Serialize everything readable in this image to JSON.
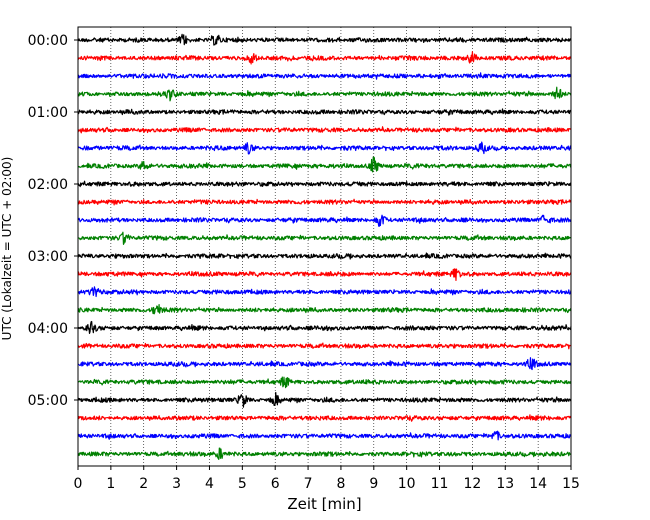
{
  "chart_data": {
    "type": "line",
    "title": "",
    "xlabel": "Zeit  [min]",
    "ylabel": "UTC (Lokalzeit = UTC + 02:00)",
    "xlim": [
      0,
      15
    ],
    "x_ticks": [
      0,
      1,
      2,
      3,
      4,
      5,
      6,
      7,
      8,
      9,
      10,
      11,
      12,
      13,
      14,
      15
    ],
    "x_tick_labels": [
      "0",
      "1",
      "2",
      "3",
      "4",
      "5",
      "6",
      "7",
      "8",
      "9",
      "10",
      "11",
      "12",
      "13",
      "14",
      "15"
    ],
    "y_tick_labels": [
      "00:00",
      "01:00",
      "02:00",
      "03:00",
      "04:00",
      "05:00"
    ],
    "trace_interval_min": 15,
    "trace_count": 24,
    "trace_colors": [
      "#000000",
      "#ff0000",
      "#0000ff",
      "#008000"
    ],
    "vertical_grid": "dotted",
    "legend": "none",
    "events": [
      {
        "trace": 0,
        "minute": 3.2,
        "amp": 1.4
      },
      {
        "trace": 0,
        "minute": 4.2,
        "amp": 1.5
      },
      {
        "trace": 1,
        "minute": 5.3,
        "amp": 1.6
      },
      {
        "trace": 1,
        "minute": 12.0,
        "amp": 1.7
      },
      {
        "trace": 3,
        "minute": 2.8,
        "amp": 1.5
      },
      {
        "trace": 3,
        "minute": 14.6,
        "amp": 1.8
      },
      {
        "trace": 6,
        "minute": 5.2,
        "amp": 1.5
      },
      {
        "trace": 6,
        "minute": 12.3,
        "amp": 1.4
      },
      {
        "trace": 7,
        "minute": 9.0,
        "amp": 2.4
      },
      {
        "trace": 7,
        "minute": 2.0,
        "amp": 1.3
      },
      {
        "trace": 10,
        "minute": 9.2,
        "amp": 1.8
      },
      {
        "trace": 10,
        "minute": 14.2,
        "amp": 1.4
      },
      {
        "trace": 11,
        "minute": 1.4,
        "amp": 1.5
      },
      {
        "trace": 13,
        "minute": 11.5,
        "amp": 1.5
      },
      {
        "trace": 14,
        "minute": 0.5,
        "amp": 1.4
      },
      {
        "trace": 15,
        "minute": 2.4,
        "amp": 1.7
      },
      {
        "trace": 16,
        "minute": 0.4,
        "amp": 1.5
      },
      {
        "trace": 18,
        "minute": 13.8,
        "amp": 1.4
      },
      {
        "trace": 19,
        "minute": 6.3,
        "amp": 1.5
      },
      {
        "trace": 20,
        "minute": 5.0,
        "amp": 2.0
      },
      {
        "trace": 20,
        "minute": 6.0,
        "amp": 1.5
      },
      {
        "trace": 22,
        "minute": 12.7,
        "amp": 1.4
      },
      {
        "trace": 23,
        "minute": 4.3,
        "amp": 1.5
      }
    ]
  }
}
